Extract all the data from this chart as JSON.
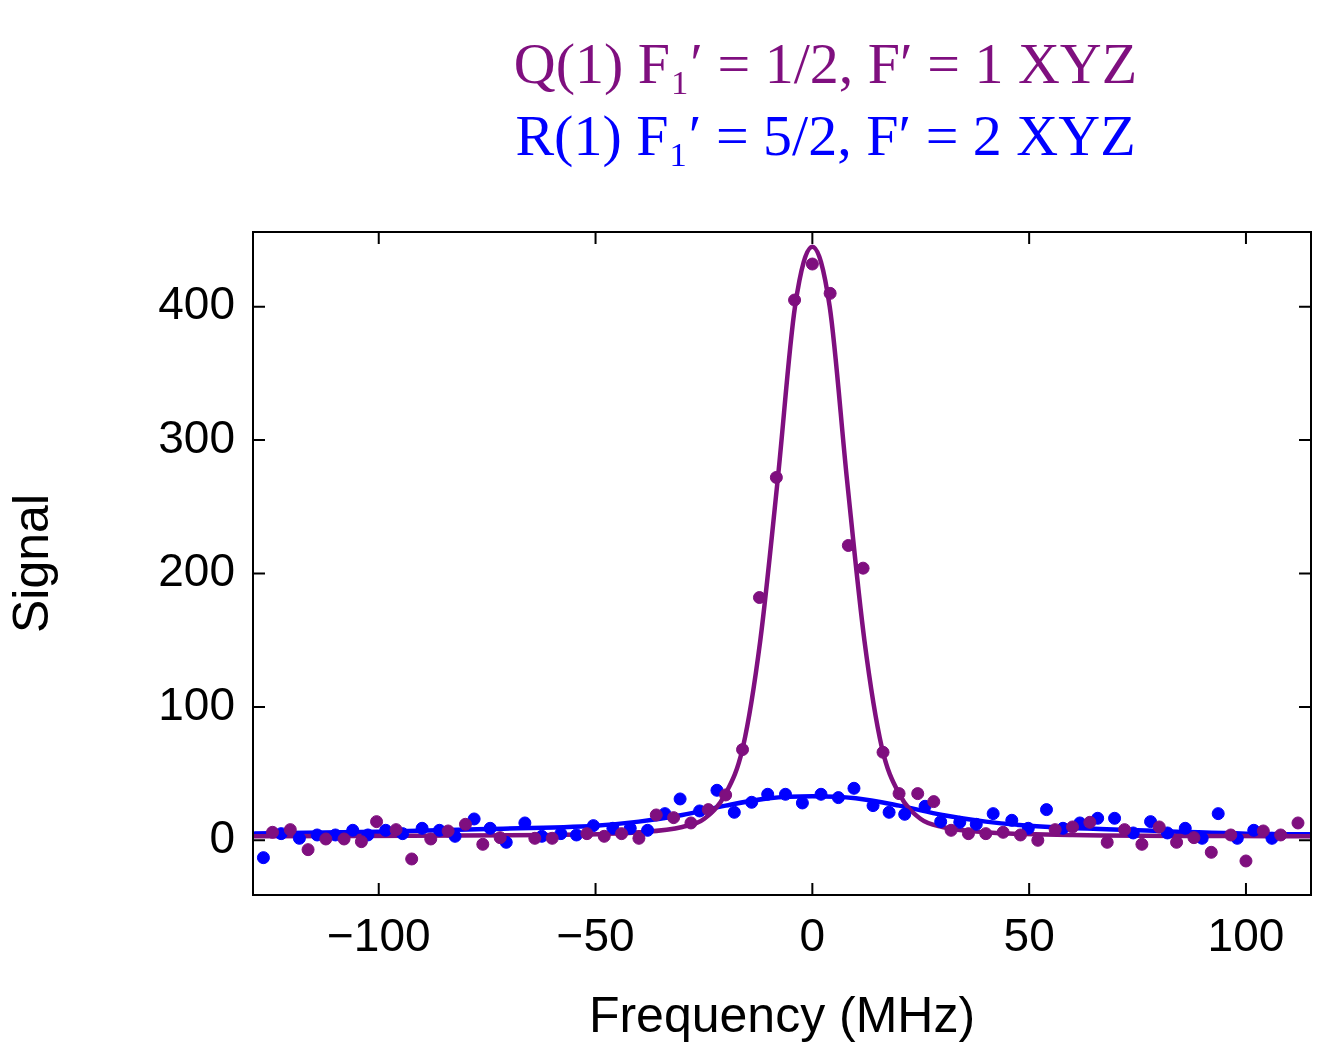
{
  "chart_data": {
    "type": "scatter",
    "xlabel": "Frequency (MHz)",
    "ylabel": "Signal",
    "legend": "top",
    "marker": "circle",
    "xlim": [
      -129,
      115
    ],
    "ylim": [
      -41,
      456
    ],
    "xticks": [
      {
        "value": -100,
        "label": "−100"
      },
      {
        "value": -50,
        "label": "−50"
      },
      0,
      50,
      100
    ],
    "yticks": [
      0,
      100,
      200,
      300,
      400
    ],
    "series": [
      {
        "name": "Q(1) F₁′ = 1/2, F′ = 1 XYZ",
        "color": "#7f0f7f",
        "x": [
          -124.5,
          -120.4,
          -116.3,
          -112.2,
          -108,
          -104,
          -100.5,
          -96,
          -92.4,
          -88,
          -84,
          -80,
          -76,
          -72,
          -64,
          -60,
          -52,
          -48,
          -44,
          -40,
          -36,
          -32,
          -28,
          -24,
          -20,
          -16.1,
          -12.2,
          -8.3,
          -4.1,
          0,
          4.1,
          8.3,
          11.7,
          16.3,
          20,
          24.3,
          28,
          32,
          36,
          40,
          44,
          48,
          52,
          56,
          60,
          64,
          68,
          72,
          76,
          80,
          84,
          88,
          92,
          96.5,
          100,
          104,
          108,
          112
        ],
        "values": [
          6,
          8,
          -7,
          1,
          1,
          -1,
          14,
          8,
          -14,
          1,
          7,
          12,
          -3,
          2,
          1.5,
          1.5,
          5,
          3,
          5,
          1.5,
          19,
          17,
          13,
          23,
          34,
          68,
          182,
          272,
          405,
          432,
          410,
          221,
          204,
          66,
          35,
          35,
          29,
          7.5,
          5,
          5,
          6,
          4,
          0,
          8,
          10,
          13.5,
          -1.5,
          8,
          -3,
          10,
          -1.5,
          2,
          -9,
          4,
          -15.5,
          7,
          4,
          13
        ]
      },
      {
        "name": "R(1) F₁′ = 5/2, F′ = 2 XYZ",
        "color": "#0000ff",
        "x": [
          -126.6,
          -122.5,
          -118.3,
          -114.2,
          -110,
          -106,
          -102.5,
          -98.4,
          -94.5,
          -90,
          -86,
          -82.4,
          -78,
          -74.3,
          -70.6,
          -66.3,
          -62.4,
          -58,
          -54.4,
          -50.5,
          -46,
          -42,
          -38,
          -34,
          -30.5,
          -26,
          -22,
          -18,
          -14,
          -10.3,
          -6.2,
          -2.3,
          2,
          6,
          9.6,
          14,
          17.7,
          21.3,
          26,
          29.6,
          34,
          37.8,
          41.7,
          46,
          49.8,
          54,
          57.8,
          61.7,
          65.8,
          69.7,
          74,
          78,
          81.9,
          86,
          89.9,
          93.6,
          98,
          101.8,
          106
        ],
        "values": [
          -13,
          5,
          1.5,
          4,
          4,
          7.5,
          4,
          7.5,
          5,
          9,
          7.5,
          3,
          16,
          9,
          -1.5,
          13,
          3,
          5,
          4,
          11,
          9,
          9,
          7.5,
          20,
          31,
          22,
          37.5,
          21,
          28.5,
          34.5,
          34.5,
          28,
          34.5,
          32,
          39,
          26,
          21,
          19.5,
          25.5,
          14,
          13.5,
          12,
          20,
          15,
          9,
          23,
          9,
          13,
          16.5,
          16.5,
          5.5,
          14,
          5.5,
          9,
          1.5,
          20,
          1.5,
          7.5,
          1.5
        ]
      },
      {
        "type": "line",
        "marker": "none",
        "color": "#7f0f7f",
        "x": [
          -129,
          -60,
          -40,
          -30,
          -25,
          -20,
          -16,
          -12,
          -8,
          -4,
          0,
          4,
          8,
          12,
          16,
          20,
          25,
          30,
          40,
          60,
          115
        ],
        "values": [
          3,
          4,
          6,
          10,
          16,
          35,
          70,
          150,
          270,
          400,
          445,
          400,
          270,
          150,
          70,
          35,
          16,
          10,
          6,
          4,
          3
        ]
      },
      {
        "type": "line",
        "marker": "none",
        "color": "#0000ff",
        "x": [
          -129,
          -100,
          -75,
          -50,
          -40,
          -30,
          -20,
          -10,
          0,
          10,
          20,
          30,
          40,
          50,
          75,
          100,
          115
        ],
        "values": [
          5,
          6.5,
          8.5,
          11,
          14,
          19,
          26,
          31.5,
          33,
          31.5,
          26,
          19,
          14,
          11,
          7.5,
          5,
          4.5
        ]
      }
    ]
  }
}
